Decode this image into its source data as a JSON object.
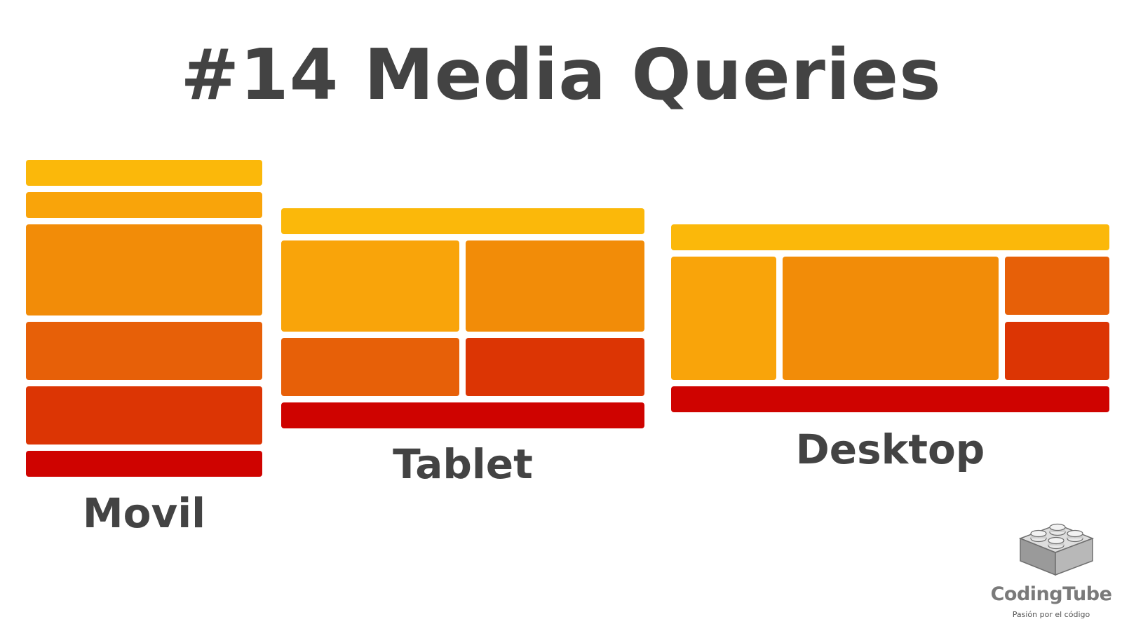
{
  "title": "#14 Media Queries",
  "labels": {
    "mobile": "Movil",
    "tablet": "Tablet",
    "desktop": "Desktop"
  },
  "logo": {
    "name": "CodingTube",
    "tagline": "Pasión por el código",
    "icon": "lego-brick-icon"
  },
  "colors": {
    "shade1": "#fbb80a",
    "shade2": "#f9a40a",
    "shade3": "#f28c08",
    "shade4": "#e76008",
    "shade5": "#dc3504",
    "shade6": "#cf0300",
    "text": "#434343"
  }
}
